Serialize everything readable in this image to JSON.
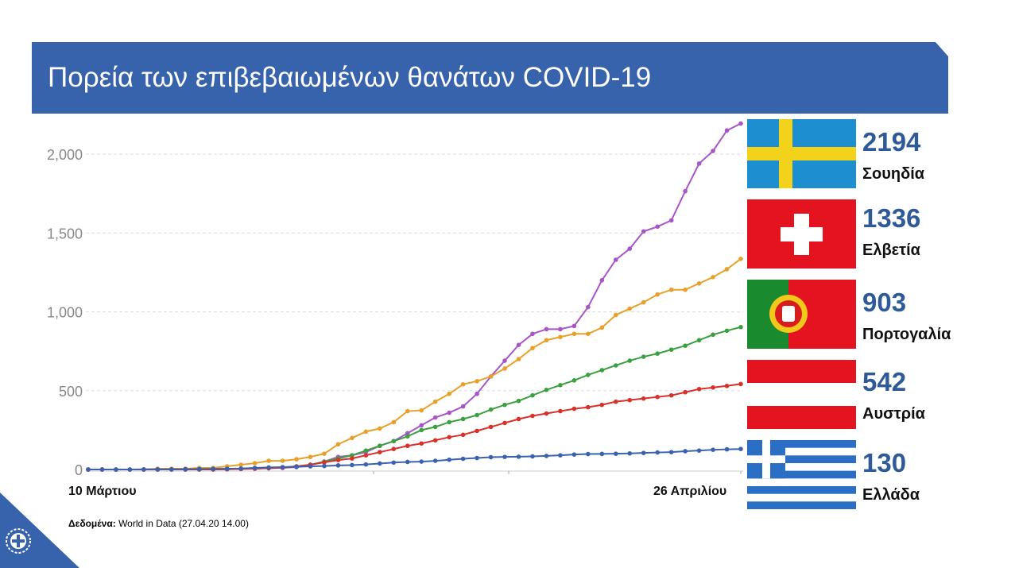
{
  "title": "Πορεία των επιβεβαιωμένων θανάτων COVID-19",
  "source": {
    "label": "Δεδομένα:",
    "text": " World in Data (27.04.20 14.00)"
  },
  "countries": [
    {
      "value": "2194",
      "name": "Σουηδία",
      "flag": "sweden"
    },
    {
      "value": "1336",
      "name": "Ελβετία",
      "flag": "switzerland"
    },
    {
      "value": "903",
      "name": "Πορτογαλία",
      "flag": "portugal"
    },
    {
      "value": "542",
      "name": "Αυστρία",
      "flag": "austria"
    },
    {
      "value": "130",
      "name": "Ελλάδα",
      "flag": "greece"
    }
  ],
  "chart_data": {
    "type": "line",
    "x_start_label": "10 Μάρτιου",
    "x_end_label": "26 Απριλίου",
    "ylim": [
      0,
      2200
    ],
    "yticks": [
      0,
      500,
      1000,
      1500,
      2000
    ],
    "ytick_labels": [
      "0",
      "500",
      "1,000",
      "1,500",
      "2,000"
    ],
    "grid": true,
    "series": [
      {
        "country": "Σουηδία",
        "color": "#a855c8",
        "values": [
          0,
          0,
          0,
          0,
          0,
          0,
          0,
          0,
          1,
          2,
          3,
          5,
          6,
          8,
          10,
          15,
          30,
          50,
          80,
          90,
          110,
          150,
          180,
          230,
          280,
          330,
          360,
          400,
          480,
          590,
          690,
          790,
          860,
          890,
          890,
          910,
          1030,
          1200,
          1330,
          1400,
          1510,
          1540,
          1580,
          1765,
          1940,
          2020,
          2150,
          2194
        ]
      },
      {
        "country": "Ελβετία",
        "color": "#e8a02a",
        "values": [
          0,
          0,
          0,
          0,
          0,
          5,
          5,
          5,
          10,
          10,
          20,
          30,
          40,
          55,
          55,
          65,
          80,
          100,
          160,
          200,
          240,
          260,
          300,
          370,
          375,
          430,
          480,
          540,
          560,
          590,
          640,
          700,
          770,
          820,
          840,
          860,
          860,
          900,
          980,
          1020,
          1060,
          1110,
          1140,
          1140,
          1180,
          1220,
          1270,
          1336
        ]
      },
      {
        "country": "Πορτογαλία",
        "color": "#3aa040",
        "values": [
          0,
          0,
          0,
          0,
          0,
          0,
          0,
          0,
          0,
          0,
          2,
          4,
          6,
          10,
          14,
          20,
          30,
          50,
          70,
          90,
          120,
          150,
          180,
          210,
          250,
          270,
          300,
          320,
          345,
          380,
          410,
          435,
          470,
          505,
          535,
          565,
          600,
          630,
          660,
          690,
          715,
          735,
          760,
          785,
          820,
          855,
          880,
          903
        ]
      },
      {
        "country": "Αυστρία",
        "color": "#d9302b",
        "values": [
          0,
          0,
          0,
          0,
          0,
          0,
          0,
          0,
          0,
          0,
          1,
          3,
          5,
          8,
          12,
          20,
          30,
          45,
          60,
          70,
          90,
          110,
          130,
          150,
          165,
          185,
          205,
          220,
          245,
          270,
          295,
          320,
          340,
          355,
          370,
          385,
          395,
          410,
          430,
          440,
          450,
          460,
          470,
          490,
          510,
          520,
          530,
          542
        ]
      },
      {
        "country": "Ελλάδα",
        "color": "#3b62b0",
        "values": [
          0,
          0,
          0,
          0,
          1,
          1,
          1,
          2,
          3,
          4,
          5,
          6,
          10,
          13,
          15,
          17,
          20,
          22,
          26,
          28,
          32,
          38,
          44,
          48,
          50,
          55,
          62,
          68,
          73,
          78,
          80,
          81,
          83,
          86,
          90,
          95,
          98,
          99,
          100,
          102,
          105,
          108,
          110,
          116,
          120,
          125,
          128,
          130
        ]
      }
    ]
  }
}
